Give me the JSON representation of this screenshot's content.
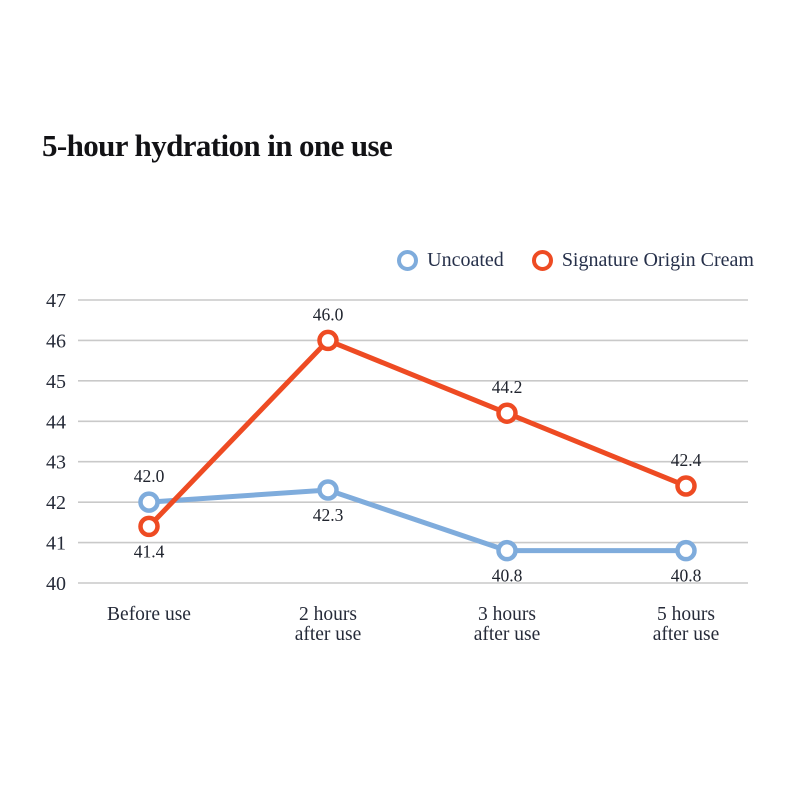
{
  "title": "5-hour hydration in one use",
  "legend": {
    "position": "top-right",
    "items": [
      {
        "label": "Uncoated",
        "color": "#7FACDC"
      },
      {
        "label": "Signature Origin Cream",
        "color": "#EE4B23"
      }
    ]
  },
  "chart_data": {
    "type": "line",
    "title": "5-hour hydration in one use",
    "categories": [
      "Before use",
      "2 hours\nafter use",
      "3 hours\nafter use",
      "5 hours\nafter use"
    ],
    "series": [
      {
        "name": "Uncoated",
        "color": "#7FACDC",
        "values": [
          42.0,
          42.3,
          40.8,
          40.8
        ],
        "label_positions": [
          "above",
          "below",
          "below",
          "below"
        ]
      },
      {
        "name": "Signature Origin Cream",
        "color": "#EE4B23",
        "values": [
          41.4,
          46.0,
          44.2,
          42.4
        ],
        "label_positions": [
          "below",
          "above",
          "above",
          "above"
        ]
      }
    ],
    "ylim": [
      40,
      47
    ],
    "y_ticks": [
      47,
      46,
      45,
      44,
      43,
      42,
      41,
      40
    ],
    "xlabel": "",
    "ylabel": "",
    "grid": "horizontal",
    "legend_position": "top-right",
    "value_label_format": "one-decimal"
  },
  "colors": {
    "background": "#FFFFFF",
    "gridline": "#C9C9C9",
    "axis_text": "#262B39",
    "value_label_text": "#20242E",
    "title_text": "#121215"
  }
}
